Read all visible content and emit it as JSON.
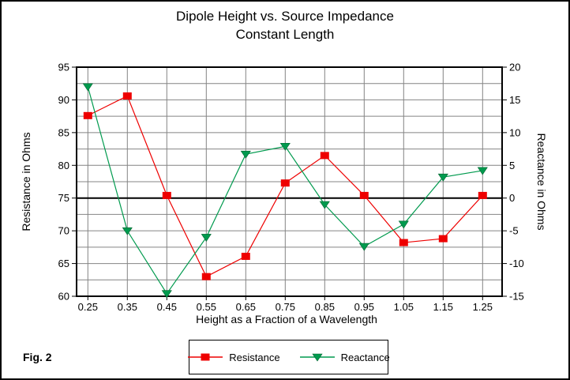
{
  "figure_label": "Fig. 2",
  "colors": {
    "resistance": "#EE0000",
    "reactance": "#009A4E",
    "grid": "#848484",
    "axis": "#000000",
    "background": "#FFFFFF"
  },
  "chart_data": {
    "type": "line",
    "title": "Dipole Height vs. Source Impedance",
    "subtitle": "Constant Length",
    "xlabel": "Height as a Fraction of a Wavelength",
    "grid": true,
    "legend_position": "bottom-center",
    "left_axis": {
      "label": "Resistance in Ohms",
      "min": 60,
      "max": 95,
      "tick_step": 5,
      "grid_step": 2.5,
      "tick_labels": [
        "95",
        "90",
        "85",
        "80",
        "75",
        "70",
        "65",
        "60"
      ]
    },
    "right_axis": {
      "label": "Reactance in Ohms",
      "min": -15,
      "max": 20,
      "tick_step": 5,
      "zero_line": true,
      "tick_labels": [
        "20",
        "15",
        "10",
        "5",
        "0",
        "-5",
        "-10",
        "-15"
      ]
    },
    "x": [
      0.25,
      0.35,
      0.45,
      0.55,
      0.65,
      0.75,
      0.85,
      0.95,
      1.05,
      1.15,
      1.25
    ],
    "x_tick_labels": [
      "0.25",
      "0.35",
      "0.45",
      "0.55",
      "0.65",
      "0.75",
      "0.85",
      "0.95",
      "1.05",
      "1.15",
      "1.25"
    ],
    "series": [
      {
        "name": "Resistance",
        "axis": "left",
        "marker": "square",
        "color_key": "resistance",
        "values": [
          87.6,
          90.6,
          75.4,
          63.0,
          66.1,
          77.3,
          81.5,
          75.4,
          68.2,
          68.8,
          75.4
        ]
      },
      {
        "name": "Reactance",
        "axis": "right",
        "marker": "triangle-down",
        "color_key": "reactance",
        "values": [
          17.0,
          -5.0,
          -14.6,
          -6.0,
          6.7,
          7.9,
          -1.0,
          -7.4,
          -4.0,
          3.2,
          4.2
        ]
      }
    ]
  }
}
